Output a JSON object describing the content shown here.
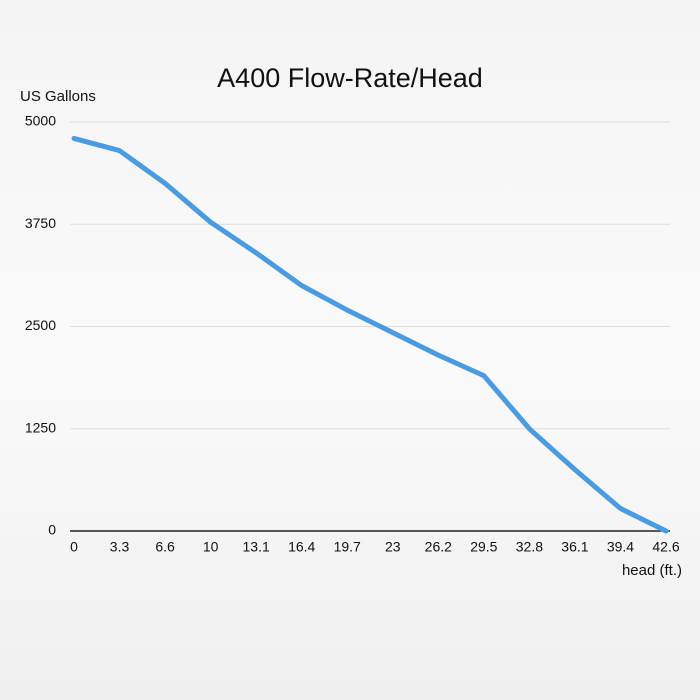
{
  "chart_data": {
    "type": "line",
    "title": "A400 Flow-Rate/Head",
    "y_label": "US Gallons",
    "x_label": "head (ft.)",
    "categories": [
      "0",
      "3.3",
      "6.6",
      "10",
      "13.1",
      "16.4",
      "19.7",
      "23",
      "26.2",
      "29.5",
      "32.8",
      "36.1",
      "39.4",
      "42.6"
    ],
    "series": [
      {
        "name": "A400",
        "color": "#4a9be0",
        "values": [
          4800,
          4650,
          4250,
          3775,
          3400,
          3000,
          2700,
          2425,
          2150,
          1900,
          1250,
          750,
          275,
          0
        ]
      }
    ],
    "ylim": [
      0,
      5000
    ],
    "yticks": [
      0,
      1250,
      2500,
      3750,
      5000
    ],
    "grid": true
  }
}
